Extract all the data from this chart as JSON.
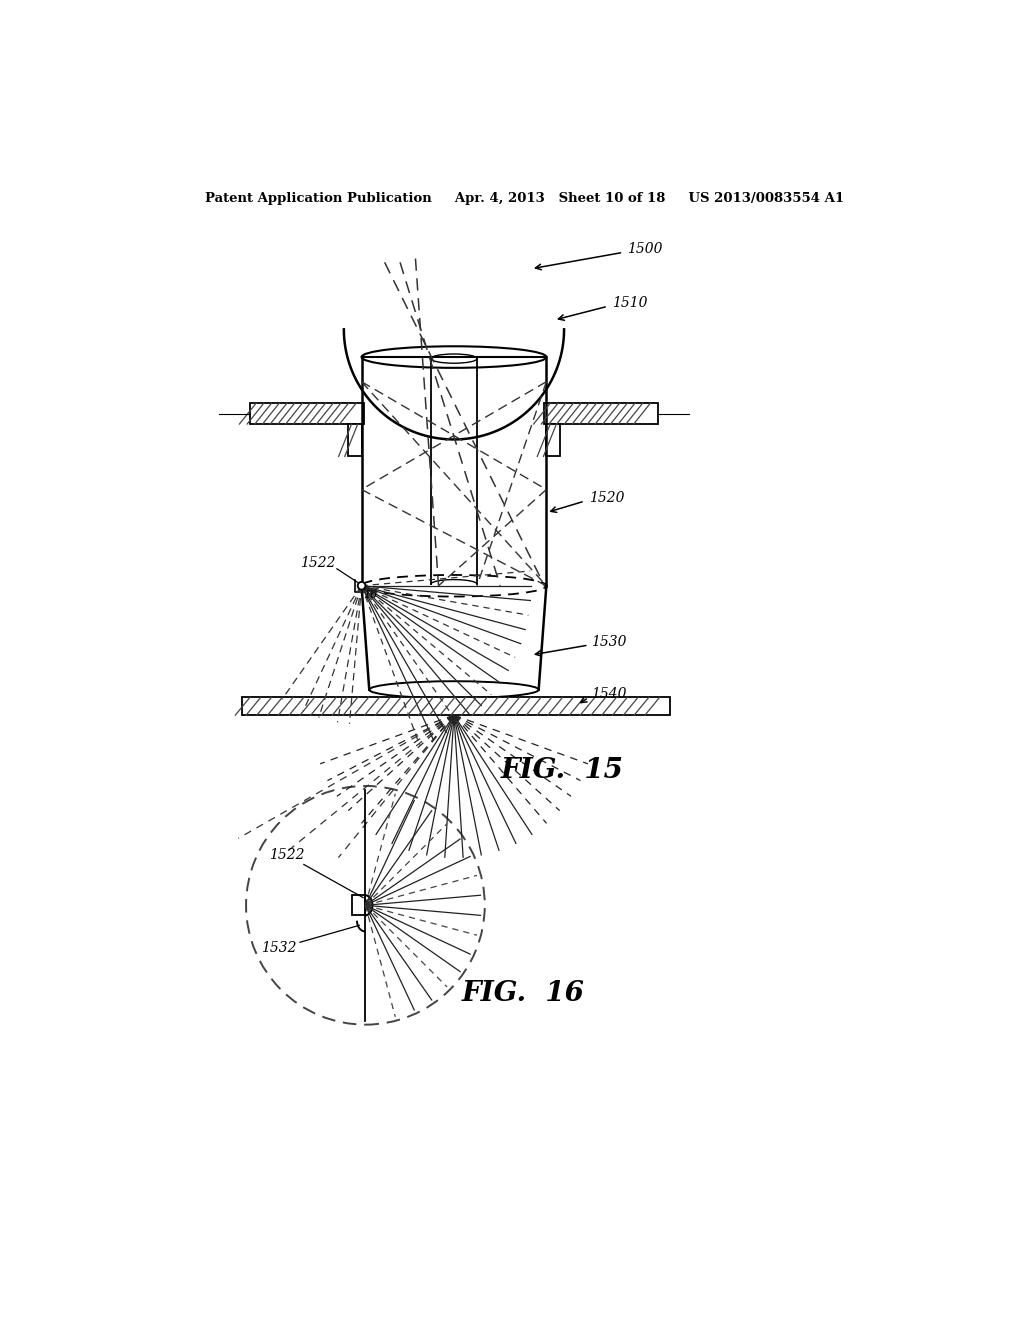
{
  "bg_color": "#ffffff",
  "line_color": "#000000",
  "header_text": "Patent Application Publication     Apr. 4, 2013   Sheet 10 of 18     US 2013/0083554 A1",
  "fig15_label": "FIG.  15",
  "fig16_label": "FIG.  16"
}
